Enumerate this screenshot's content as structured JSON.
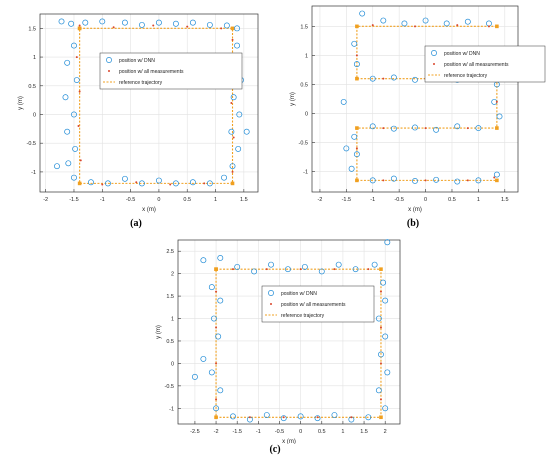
{
  "colors": {
    "dnn": "#1f8bd6",
    "meas": "#d9462c",
    "ref": "#f0a020",
    "axis": "#333333",
    "grid": "#e2e2e2"
  },
  "panel_labels": {
    "a": "(a)",
    "b": "(b)",
    "c": "(c)"
  },
  "chart_data": [
    {
      "type": "scatter",
      "panel": "(a)",
      "xlabel": "x (m)",
      "ylabel": "y (m)",
      "xlim": [
        -2.1,
        1.75
      ],
      "ylim": [
        -1.35,
        1.75
      ],
      "xticks": [
        "-2",
        "-1.5",
        "-1",
        "-0.5",
        "0",
        "0.5",
        "1",
        "1.5"
      ],
      "xtickvals": [
        -2,
        -1.5,
        -1,
        -0.5,
        0,
        0.5,
        1,
        1.5
      ],
      "yticks": [
        "-1",
        "-0.5",
        "0",
        "0.5",
        "1",
        "1.5"
      ],
      "ytickvals": [
        -1,
        -0.5,
        0,
        0.5,
        1,
        1.5
      ],
      "grid": true,
      "legend": {
        "placement": "top-center",
        "entries": [
          "position w/ DNN",
          "position w/ all measurements",
          "reference trajectory"
        ]
      },
      "reference_trajectory": {
        "x": [
          -1.4,
          1.3,
          1.3,
          -1.4,
          -1.4
        ],
        "y": [
          1.5,
          1.5,
          -1.2,
          -1.2,
          1.5
        ]
      },
      "series": [
        {
          "name": "position w/ DNN",
          "marker": "circle",
          "points": [
            [
              -1.72,
              1.62
            ],
            [
              -1.55,
              1.58
            ],
            [
              -1.3,
              1.6
            ],
            [
              -1.0,
              1.62
            ],
            [
              -0.6,
              1.6
            ],
            [
              -0.3,
              1.56
            ],
            [
              0.0,
              1.6
            ],
            [
              0.3,
              1.58
            ],
            [
              0.6,
              1.6
            ],
            [
              0.9,
              1.56
            ],
            [
              1.2,
              1.55
            ],
            [
              1.38,
              1.5
            ],
            [
              -1.5,
              1.2
            ],
            [
              -1.62,
              0.9
            ],
            [
              -1.45,
              0.6
            ],
            [
              -1.65,
              0.3
            ],
            [
              -1.5,
              0.0
            ],
            [
              -1.62,
              -0.3
            ],
            [
              -1.48,
              -0.6
            ],
            [
              -1.6,
              -0.85
            ],
            [
              -1.5,
              -1.1
            ],
            [
              -1.2,
              -1.18
            ],
            [
              -0.9,
              -1.2
            ],
            [
              -0.6,
              -1.12
            ],
            [
              -0.3,
              -1.2
            ],
            [
              0.0,
              -1.15
            ],
            [
              0.3,
              -1.2
            ],
            [
              0.6,
              -1.18
            ],
            [
              0.9,
              -1.2
            ],
            [
              1.15,
              -1.1
            ],
            [
              1.3,
              -0.9
            ],
            [
              1.4,
              -0.6
            ],
            [
              1.28,
              -0.3
            ],
            [
              1.42,
              0.0
            ],
            [
              1.32,
              0.3
            ],
            [
              1.45,
              0.6
            ],
            [
              1.3,
              0.9
            ],
            [
              1.38,
              1.2
            ],
            [
              -1.8,
              -0.9
            ],
            [
              1.55,
              -0.3
            ]
          ]
        },
        {
          "name": "position w/ all measurements",
          "marker": "dot",
          "points": [
            [
              -1.4,
              1.55
            ],
            [
              -0.8,
              1.52
            ],
            [
              -0.1,
              1.55
            ],
            [
              0.5,
              1.53
            ],
            [
              1.1,
              1.5
            ],
            [
              -1.45,
              1.0
            ],
            [
              -1.4,
              0.4
            ],
            [
              -1.42,
              -0.2
            ],
            [
              -1.38,
              -0.8
            ],
            [
              -1.0,
              -1.22
            ],
            [
              -0.4,
              -1.18
            ],
            [
              0.2,
              -1.22
            ],
            [
              0.8,
              -1.2
            ],
            [
              1.3,
              -1.0
            ],
            [
              1.32,
              -0.4
            ],
            [
              1.28,
              0.2
            ],
            [
              1.3,
              0.8
            ],
            [
              1.3,
              1.3
            ]
          ]
        }
      ]
    },
    {
      "type": "scatter",
      "panel": "(b)",
      "xlabel": "x (m)",
      "ylabel": "y (m)",
      "xlim": [
        -2.15,
        1.75
      ],
      "ylim": [
        -1.35,
        1.85
      ],
      "xticks": [
        "-2",
        "-1.5",
        "-1",
        "-0.5",
        "0",
        "0.5",
        "1",
        "1.5"
      ],
      "xtickvals": [
        -2,
        -1.5,
        -1,
        -0.5,
        0,
        0.5,
        1,
        1.5
      ],
      "yticks": [
        "-1",
        "-0.5",
        "0",
        "0.5",
        "1",
        "1.5"
      ],
      "ytickvals": [
        -1,
        -0.5,
        0,
        0.5,
        1,
        1.5
      ],
      "grid": true,
      "legend": {
        "placement": "top-right",
        "entries": [
          "position w/ DNN",
          "position w/ all measurements",
          "reference trajectory"
        ]
      },
      "reference_trajectory": {
        "x": [
          1.35,
          -1.3,
          -1.3,
          1.35,
          1.35,
          -1.3,
          -1.3,
          1.35
        ],
        "y": [
          1.5,
          1.5,
          0.6,
          0.6,
          -0.25,
          -0.25,
          -1.15,
          -1.15
        ]
      },
      "series": [
        {
          "name": "position w/ DNN",
          "marker": "circle",
          "points": [
            [
              -1.2,
              1.72
            ],
            [
              -0.8,
              1.6
            ],
            [
              -0.4,
              1.55
            ],
            [
              0.0,
              1.6
            ],
            [
              0.4,
              1.55
            ],
            [
              0.8,
              1.58
            ],
            [
              1.2,
              1.55
            ],
            [
              -1.35,
              1.2
            ],
            [
              -1.3,
              0.85
            ],
            [
              -1.0,
              0.6
            ],
            [
              -0.6,
              0.62
            ],
            [
              -0.2,
              0.58
            ],
            [
              0.2,
              0.62
            ],
            [
              0.6,
              0.58
            ],
            [
              1.0,
              0.62
            ],
            [
              1.35,
              0.5
            ],
            [
              1.3,
              0.2
            ],
            [
              1.4,
              -0.05
            ],
            [
              1.0,
              -0.25
            ],
            [
              0.6,
              -0.22
            ],
            [
              0.2,
              -0.28
            ],
            [
              -0.2,
              -0.24
            ],
            [
              -0.6,
              -0.26
            ],
            [
              -1.0,
              -0.22
            ],
            [
              -1.35,
              -0.4
            ],
            [
              -1.3,
              -0.7
            ],
            [
              -1.4,
              -0.95
            ],
            [
              -1.0,
              -1.15
            ],
            [
              -0.6,
              -1.12
            ],
            [
              -0.2,
              -1.16
            ],
            [
              0.2,
              -1.14
            ],
            [
              0.6,
              -1.17
            ],
            [
              1.0,
              -1.15
            ],
            [
              1.35,
              -1.05
            ],
            [
              -1.5,
              -0.6
            ],
            [
              -1.55,
              0.2
            ]
          ]
        },
        {
          "name": "position w/ all measurements",
          "marker": "dot",
          "points": [
            [
              -1.0,
              1.52
            ],
            [
              -0.2,
              1.5
            ],
            [
              0.6,
              1.52
            ],
            [
              1.2,
              1.5
            ],
            [
              -1.3,
              1.0
            ],
            [
              -0.8,
              0.6
            ],
            [
              0.0,
              0.6
            ],
            [
              0.8,
              0.6
            ],
            [
              1.35,
              0.2
            ],
            [
              0.8,
              -0.25
            ],
            [
              0.0,
              -0.25
            ],
            [
              -0.8,
              -0.25
            ],
            [
              -1.3,
              -0.6
            ],
            [
              -0.8,
              -1.15
            ],
            [
              0.0,
              -1.15
            ],
            [
              0.8,
              -1.15
            ],
            [
              1.3,
              -1.1
            ]
          ]
        }
      ]
    },
    {
      "type": "scatter",
      "panel": "(c)",
      "xlabel": "x (m)",
      "ylabel": "y (m)",
      "xlim": [
        -2.9,
        2.35
      ],
      "ylim": [
        -1.35,
        2.75
      ],
      "xticks": [
        "-2.5",
        "-2",
        "-1.5",
        "-1",
        "-0.5",
        "0",
        "0.5",
        "1",
        "1.5",
        "2"
      ],
      "xtickvals": [
        -2.5,
        -2,
        -1.5,
        -1,
        -0.5,
        0,
        0.5,
        1,
        1.5,
        2
      ],
      "yticks": [
        "-1",
        "-0.5",
        "0",
        "0.5",
        "1",
        "1.5",
        "2",
        "2.5"
      ],
      "ytickvals": [
        -1,
        -0.5,
        0,
        0.5,
        1,
        1.5,
        2,
        2.5
      ],
      "grid": true,
      "legend": {
        "placement": "center",
        "entries": [
          "position w/ DNN",
          "position w/ all measurements",
          "reference trajectory"
        ]
      },
      "reference_trajectory": {
        "x": [
          -2.0,
          1.9,
          1.9,
          -2.0,
          -2.0
        ],
        "y": [
          2.1,
          2.1,
          -1.2,
          -1.2,
          2.1
        ]
      },
      "series": [
        {
          "name": "position w/ DNN",
          "marker": "circle",
          "points": [
            [
              -1.9,
              2.35
            ],
            [
              -1.5,
              2.15
            ],
            [
              -1.1,
              2.05
            ],
            [
              -0.7,
              2.2
            ],
            [
              -0.3,
              2.1
            ],
            [
              0.1,
              2.15
            ],
            [
              0.5,
              2.05
            ],
            [
              0.9,
              2.2
            ],
            [
              1.3,
              2.1
            ],
            [
              1.75,
              2.2
            ],
            [
              2.05,
              2.7
            ],
            [
              1.95,
              1.8
            ],
            [
              2.0,
              1.4
            ],
            [
              1.85,
              1.0
            ],
            [
              2.0,
              0.6
            ],
            [
              1.9,
              0.2
            ],
            [
              2.05,
              -0.2
            ],
            [
              1.85,
              -0.6
            ],
            [
              2.0,
              -1.0
            ],
            [
              1.6,
              -1.2
            ],
            [
              1.2,
              -1.25
            ],
            [
              0.8,
              -1.15
            ],
            [
              0.4,
              -1.22
            ],
            [
              0.0,
              -1.18
            ],
            [
              -0.4,
              -1.22
            ],
            [
              -0.8,
              -1.15
            ],
            [
              -1.2,
              -1.25
            ],
            [
              -1.6,
              -1.18
            ],
            [
              -2.0,
              -1.0
            ],
            [
              -1.9,
              -0.6
            ],
            [
              -2.1,
              -0.2
            ],
            [
              -2.3,
              0.1
            ],
            [
              -2.5,
              -0.3
            ],
            [
              -1.95,
              0.6
            ],
            [
              -2.05,
              1.0
            ],
            [
              -1.9,
              1.4
            ],
            [
              -2.1,
              1.7
            ],
            [
              -2.3,
              2.3
            ]
          ]
        },
        {
          "name": "position w/ all measurements",
          "marker": "dot",
          "points": [
            [
              -1.6,
              2.1
            ],
            [
              -0.8,
              2.1
            ],
            [
              0.0,
              2.1
            ],
            [
              0.8,
              2.1
            ],
            [
              1.6,
              2.1
            ],
            [
              1.9,
              1.6
            ],
            [
              1.9,
              0.8
            ],
            [
              1.9,
              0.0
            ],
            [
              1.9,
              -0.8
            ],
            [
              1.2,
              -1.2
            ],
            [
              0.4,
              -1.2
            ],
            [
              -0.4,
              -1.2
            ],
            [
              -1.2,
              -1.2
            ],
            [
              -2.0,
              -0.8
            ],
            [
              -2.0,
              0.0
            ],
            [
              -2.0,
              0.8
            ],
            [
              -2.0,
              1.6
            ]
          ]
        }
      ]
    }
  ]
}
